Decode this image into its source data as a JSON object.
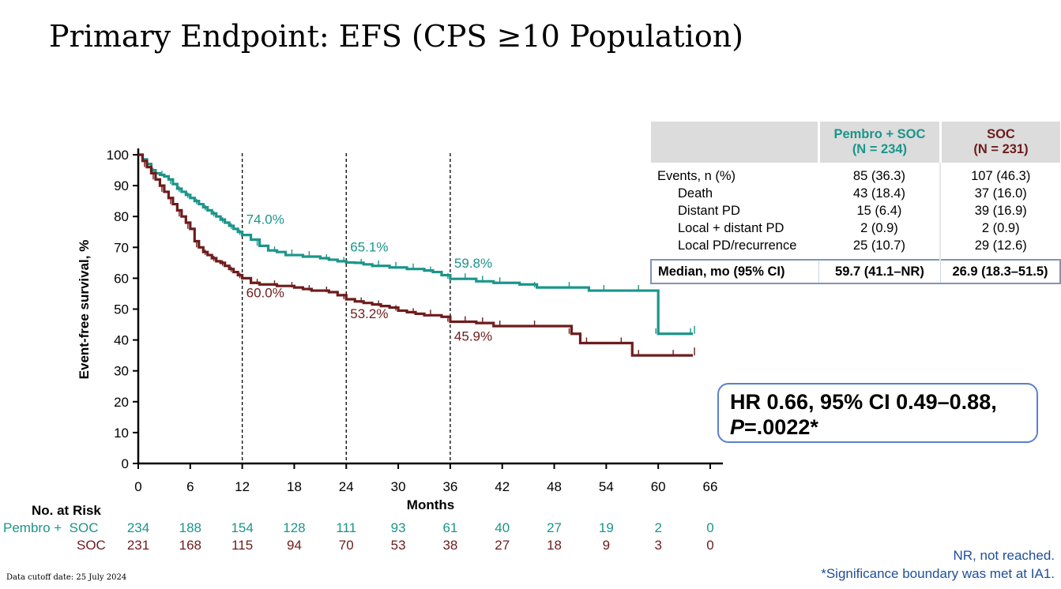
{
  "title": "Primary Endpoint: EFS (CPS ≥10 Population)",
  "colors": {
    "pembro": "#1b958a",
    "soc": "#6e1c1c",
    "accent_box": "#5b7fd0",
    "footnote": "#1f4e9a"
  },
  "chart_data": {
    "type": "line",
    "xlabel": "Months",
    "ylabel": "Event-free survival, %",
    "xlim": [
      0,
      66
    ],
    "ylim": [
      0,
      100
    ],
    "xticks": [
      0,
      6,
      12,
      18,
      24,
      30,
      36,
      42,
      48,
      54,
      60,
      66
    ],
    "yticks": [
      0,
      10,
      20,
      30,
      40,
      50,
      60,
      70,
      80,
      90,
      100
    ],
    "reference_lines_x": [
      12,
      24,
      36
    ],
    "grid": false,
    "series": [
      {
        "name": "Pembro + SOC",
        "color": "#1b958a",
        "x": [
          0,
          0.5,
          1,
          1.5,
          2,
          2.5,
          3,
          3.5,
          4,
          4.5,
          5,
          5.5,
          6,
          6.5,
          7,
          7.5,
          8,
          8.5,
          9,
          9.5,
          10,
          10.5,
          11,
          11.5,
          12,
          13,
          14,
          15,
          16,
          17,
          18,
          19,
          20,
          21,
          22,
          23,
          24,
          25,
          26,
          27,
          28,
          29,
          30,
          31,
          32,
          33,
          34,
          35,
          36,
          37,
          38,
          39,
          40,
          41,
          42,
          44,
          46,
          48,
          50,
          52,
          54,
          56,
          58,
          59.5,
          60,
          62,
          64
        ],
        "y": [
          100,
          98.5,
          97,
          95,
          94,
          93.5,
          93,
          92,
          90.5,
          89,
          88,
          87,
          86,
          85,
          84,
          83,
          82,
          81,
          80,
          79,
          78,
          77,
          76,
          75,
          74,
          72.5,
          70.5,
          69,
          68.5,
          67.5,
          67.5,
          67,
          67,
          66.5,
          66,
          65.5,
          65.1,
          65,
          64.5,
          64,
          64,
          63.5,
          63.5,
          63,
          63,
          62.5,
          62,
          61,
          59.8,
          59.8,
          59.8,
          59,
          59,
          58.5,
          58.5,
          58,
          57,
          57,
          57,
          56,
          56,
          56,
          56,
          56,
          42,
          42,
          42
        ]
      },
      {
        "name": "SOC",
        "color": "#6e1c1c",
        "x": [
          0,
          0.5,
          1,
          1.5,
          2,
          2.5,
          3,
          3.5,
          4,
          4.5,
          5,
          5.5,
          6,
          6.5,
          7,
          7.5,
          8,
          8.5,
          9,
          9.5,
          10,
          10.5,
          11,
          11.5,
          12,
          13,
          14,
          15,
          16,
          17,
          18,
          19,
          20,
          21,
          22,
          23,
          24,
          25,
          26,
          27,
          28,
          29,
          30,
          31,
          32,
          33,
          34,
          35,
          36,
          37,
          38,
          39,
          40,
          41,
          42,
          44,
          46,
          48,
          50,
          51,
          52,
          54,
          56,
          57,
          58,
          60,
          62,
          64
        ],
        "y": [
          100,
          98,
          96,
          94,
          92,
          90,
          88,
          86,
          84,
          82,
          80,
          78,
          76,
          72,
          70,
          68.5,
          67.5,
          66.5,
          65.5,
          65,
          64,
          63,
          62,
          61,
          60.0,
          58.5,
          58,
          58,
          57.5,
          57.5,
          57,
          56.5,
          56,
          56,
          55.5,
          54.5,
          53.2,
          52.5,
          52,
          51.5,
          51,
          50.5,
          49.5,
          49,
          48.5,
          48,
          48,
          47.5,
          45.9,
          45.9,
          45.9,
          45.5,
          45.5,
          44.5,
          44.5,
          44.5,
          44.5,
          44.5,
          42,
          39,
          39,
          39,
          39,
          35,
          35,
          35,
          35,
          35
        ]
      }
    ],
    "annotations": [
      {
        "x": 12,
        "y": 74.0,
        "label": "74.0%",
        "series": "Pembro + SOC"
      },
      {
        "x": 24,
        "y": 65.1,
        "label": "65.1%",
        "series": "Pembro + SOC"
      },
      {
        "x": 36,
        "y": 59.8,
        "label": "59.8%",
        "series": "Pembro + SOC"
      },
      {
        "x": 12,
        "y": 60.0,
        "label": "60.0%",
        "series": "SOC"
      },
      {
        "x": 24,
        "y": 53.2,
        "label": "53.2%",
        "series": "SOC"
      },
      {
        "x": 36,
        "y": 45.9,
        "label": "45.9%",
        "series": "SOC"
      }
    ]
  },
  "stats_table": {
    "header": {
      "pembro_line1": "Pembro + SOC",
      "pembro_line2": "(N = 234)",
      "soc_line1": "SOC",
      "soc_line2": "(N = 231)"
    },
    "rows": [
      {
        "label": "Events, n (%)",
        "pembro": "85 (36.3)",
        "soc": "107 (46.3)"
      },
      {
        "label": "Death",
        "pembro": "43 (18.4)",
        "soc": "37 (16.0)"
      },
      {
        "label": "Distant PD",
        "pembro": "15 (6.4)",
        "soc": "39 (16.9)"
      },
      {
        "label": "Local + distant PD",
        "pembro": "2 (0.9)",
        "soc": "2 (0.9)"
      },
      {
        "label": "Local PD/recurrence",
        "pembro": "25 (10.7)",
        "soc": "29 (12.6)"
      }
    ],
    "median": {
      "label": "Median, mo (95% CI)",
      "pembro": "59.7 (41.1–NR)",
      "soc": "26.9 (18.3–51.5)"
    }
  },
  "hazard_box": {
    "line1": "HR 0.66, 95% CI 0.49–0.88,",
    "p_label": "P",
    "p_value": "=.0022*"
  },
  "risk_table": {
    "title": "No. at Risk",
    "pembro_label_a": "Pembro +",
    "pembro_label_b": "SOC",
    "soc_label": "SOC",
    "pembro": [
      "234",
      "188",
      "154",
      "128",
      "111",
      "93",
      "61",
      "40",
      "27",
      "19",
      "2",
      "0"
    ],
    "soc": [
      "231",
      "168",
      "115",
      "94",
      "70",
      "53",
      "38",
      "27",
      "18",
      "9",
      "3",
      "0"
    ]
  },
  "footnotes": {
    "cutoff": "Data cutoff date: 25 July 2024",
    "nr": "NR, not reached.",
    "significance": "*Significance boundary was met at IA1."
  }
}
